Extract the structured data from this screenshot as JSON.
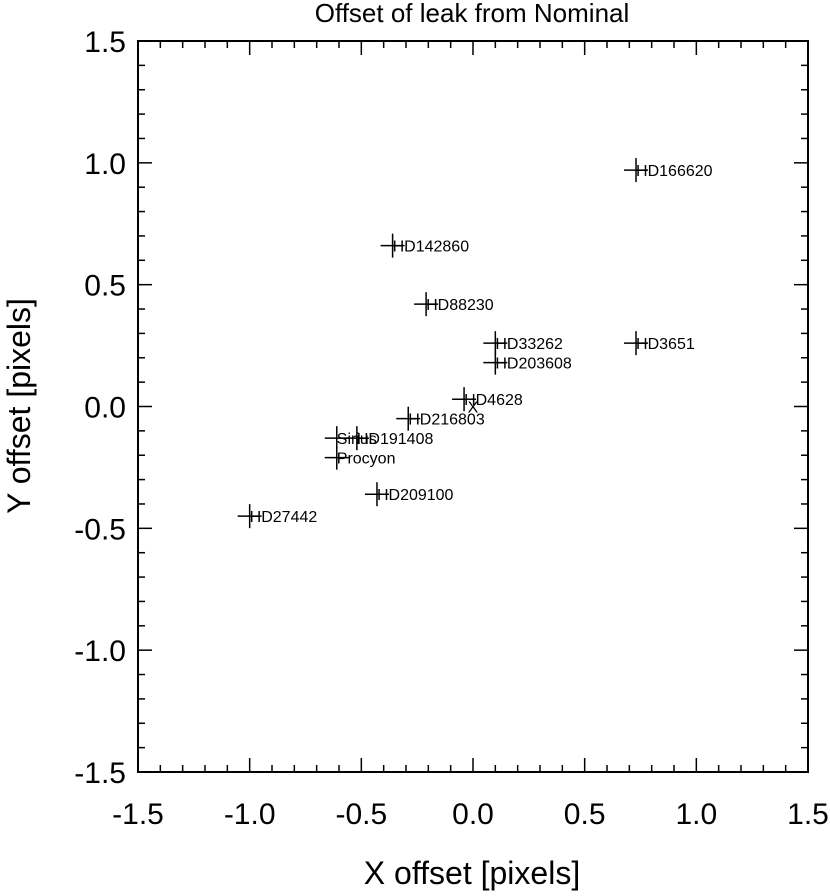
{
  "chart_data": {
    "type": "scatter",
    "title": "Offset of leak from Nominal",
    "xlabel": "X offset [pixels]",
    "ylabel": "Y offset [pixels]",
    "xlim": [
      -1.5,
      1.5
    ],
    "ylim": [
      -1.5,
      1.5
    ],
    "xticks": [
      -1.5,
      -1.0,
      -0.5,
      0.0,
      0.5,
      1.0,
      1.5
    ],
    "yticks": [
      -1.5,
      -1.0,
      -0.5,
      0.0,
      0.5,
      1.0,
      1.5
    ],
    "xtick_labels": [
      "-1.5",
      "-1.0",
      "-0.5",
      "0.0",
      "0.5",
      "1.0",
      "1.5"
    ],
    "ytick_labels": [
      "-1.5",
      "-1.0",
      "-0.5",
      "0.0",
      "0.5",
      "1.0",
      "1.5"
    ],
    "grid": false,
    "marker": "plus",
    "points": [
      {
        "label": "HD166620",
        "x": 0.73,
        "y": 0.97
      },
      {
        "label": "HD142860",
        "x": -0.36,
        "y": 0.66
      },
      {
        "label": "HD88230",
        "x": -0.21,
        "y": 0.42
      },
      {
        "label": "HD33262",
        "x": 0.1,
        "y": 0.26
      },
      {
        "label": "HD3651",
        "x": 0.73,
        "y": 0.26
      },
      {
        "label": "HD203608",
        "x": 0.1,
        "y": 0.18
      },
      {
        "label": "HD4628",
        "x": -0.04,
        "y": 0.03
      },
      {
        "label": "HD216803",
        "x": -0.29,
        "y": -0.05
      },
      {
        "label": "Sirius",
        "x": -0.61,
        "y": -0.13
      },
      {
        "label": "HD191408",
        "x": -0.52,
        "y": -0.13
      },
      {
        "label": "Procyon",
        "x": -0.61,
        "y": -0.21
      },
      {
        "label": "HD209100",
        "x": -0.43,
        "y": -0.36
      },
      {
        "label": "HD27442",
        "x": -1.0,
        "y": -0.45
      }
    ],
    "center_marker": {
      "symbol": "X",
      "x": 0.0,
      "y": 0.0
    }
  }
}
